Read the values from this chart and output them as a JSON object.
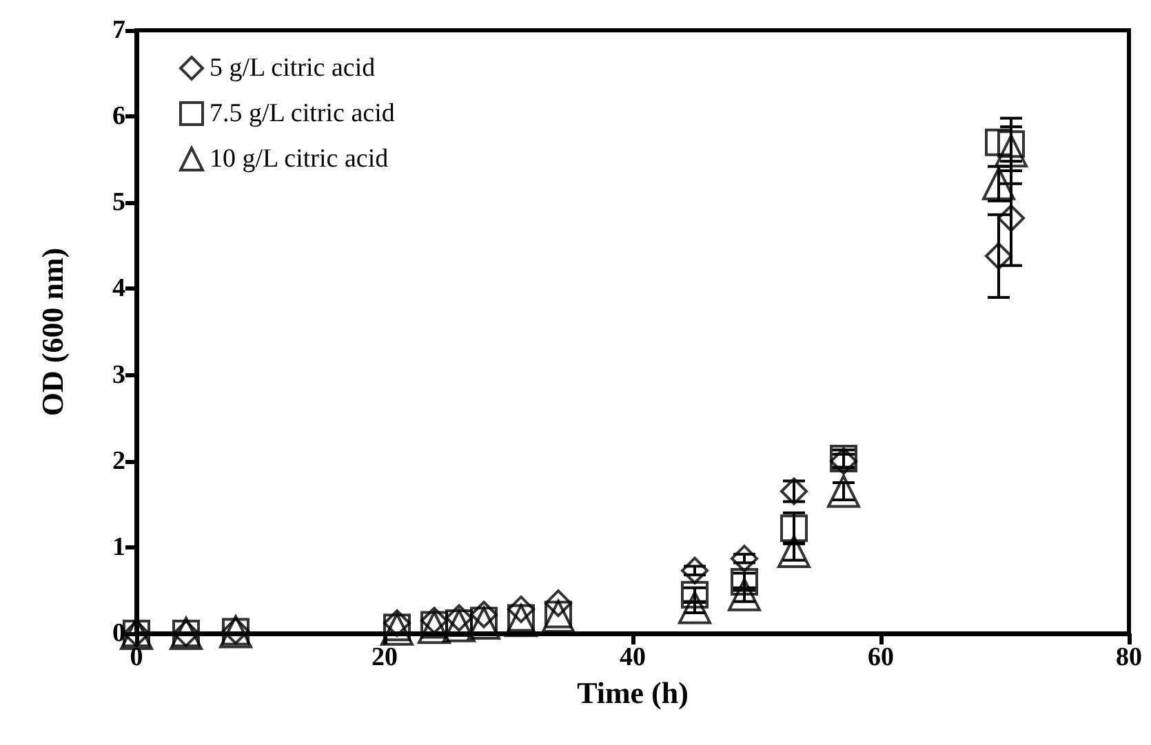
{
  "chart_data": {
    "type": "scatter",
    "xlabel": "Time (h)",
    "ylabel": "OD (600 nm)",
    "xlim": [
      0,
      80
    ],
    "xticks": [
      0,
      20,
      40,
      60,
      80
    ],
    "ylim": [
      0,
      7
    ],
    "yticks": [
      0,
      1,
      2,
      3,
      4,
      5,
      6,
      7
    ],
    "grid": false,
    "legend": "top left",
    "series": [
      {
        "name": "5 g/L citric acid",
        "color": "#000000",
        "marker": "diamond",
        "x": [
          0,
          4,
          8,
          21,
          24,
          26,
          28,
          31,
          34,
          45,
          49,
          53,
          57,
          69.5,
          70.5
        ],
        "values": [
          0,
          0,
          0.03,
          0.12,
          0.15,
          0.18,
          0.22,
          0.28,
          0.35,
          0.73,
          0.87,
          1.65,
          2.0,
          4.38,
          4.82
        ],
        "errors": [
          null,
          null,
          null,
          null,
          null,
          null,
          null,
          null,
          null,
          0.05,
          0.05,
          0.12,
          0.08,
          0.48,
          0.55
        ]
      },
      {
        "name": "7.5 g/L citric acid",
        "color": "#000000",
        "marker": "square",
        "x": [
          0,
          4,
          8,
          21,
          24,
          26,
          28,
          31,
          34,
          45,
          49,
          53,
          57,
          69.5,
          70.5
        ],
        "values": [
          0,
          0,
          0.02,
          0.07,
          0.1,
          0.12,
          0.15,
          0.18,
          0.22,
          0.45,
          0.6,
          1.22,
          2.03,
          5.7,
          5.68
        ],
        "errors": [
          null,
          null,
          null,
          null,
          null,
          null,
          null,
          null,
          null,
          0.08,
          0.1,
          0.18,
          0.1,
          null,
          0.2
        ]
      },
      {
        "name": "10 g/L citric acid",
        "color": "#000000",
        "marker": "triangle",
        "x": [
          0,
          4,
          8,
          21,
          24,
          26,
          28,
          31,
          34,
          45,
          49,
          53,
          57,
          69.5,
          70.5
        ],
        "values": [
          0,
          0,
          0.02,
          0.05,
          0.07,
          0.09,
          0.12,
          0.15,
          0.2,
          0.3,
          0.45,
          0.95,
          1.65,
          5.22,
          5.6
        ],
        "errors": [
          null,
          null,
          null,
          null,
          null,
          null,
          null,
          null,
          null,
          0.06,
          0.08,
          0.1,
          0.1,
          0.2,
          0.38
        ]
      }
    ]
  }
}
